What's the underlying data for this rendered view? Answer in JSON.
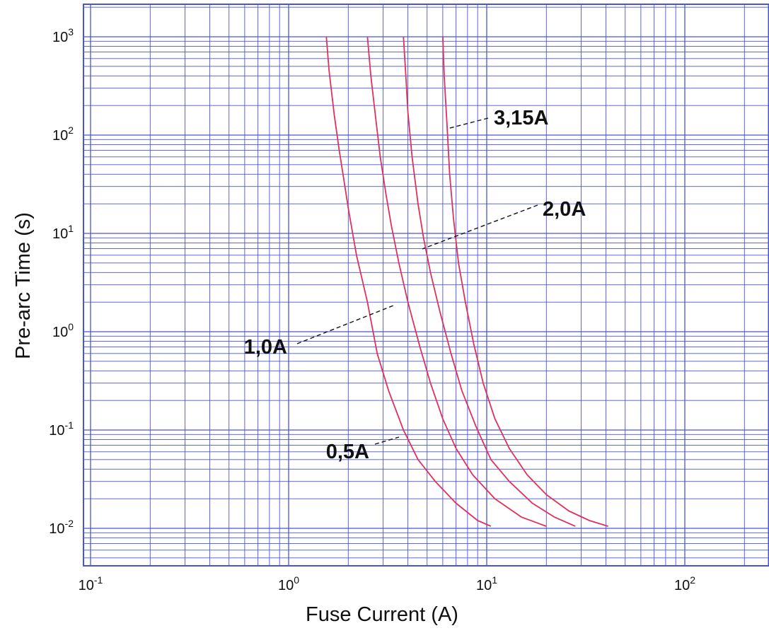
{
  "chart_data": {
    "type": "line",
    "xlabel": "Fuse Current (A)",
    "ylabel": "Pre-arc Time (s)",
    "x_scale": "log",
    "y_scale": "log",
    "xlim": [
      0.1,
      400
    ],
    "ylim": [
      0.0042,
      2000
    ],
    "grid": true,
    "legend": "none",
    "x_ticks": [
      {
        "value": 0.1,
        "base": "10",
        "exp": "-1"
      },
      {
        "value": 1,
        "base": "10",
        "exp": "0"
      },
      {
        "value": 10,
        "base": "10",
        "exp": "1"
      },
      {
        "value": 100,
        "base": "10",
        "exp": "2"
      }
    ],
    "y_ticks": [
      {
        "value": 1000,
        "base": "10",
        "exp": "3"
      },
      {
        "value": 100,
        "base": "10",
        "exp": "2"
      },
      {
        "value": 10,
        "base": "10",
        "exp": "1"
      },
      {
        "value": 1,
        "base": "10",
        "exp": "0"
      },
      {
        "value": 0.1,
        "base": "10",
        "exp": "-1"
      },
      {
        "value": 0.01,
        "base": "10",
        "exp": "-2"
      }
    ],
    "series": [
      {
        "name": "0,5A",
        "x": [
          1.55,
          1.6,
          1.7,
          1.8,
          1.9,
          2.0,
          2.2,
          2.5,
          2.8,
          3.2,
          3.8,
          4.5,
          5.5,
          7.0,
          9.0,
          10.5
        ],
        "y": [
          1000,
          450,
          160,
          70,
          35,
          18,
          6,
          2.0,
          0.6,
          0.25,
          0.1,
          0.05,
          0.03,
          0.018,
          0.012,
          0.0105
        ]
      },
      {
        "name": "1,0A",
        "x": [
          2.5,
          2.6,
          2.75,
          2.9,
          3.1,
          3.3,
          3.6,
          4.0,
          4.6,
          5.2,
          6.0,
          7.0,
          8.5,
          11.0,
          15.0,
          20.0
        ],
        "y": [
          1000,
          400,
          150,
          60,
          25,
          12,
          5,
          2.0,
          0.7,
          0.3,
          0.13,
          0.065,
          0.035,
          0.02,
          0.013,
          0.0105
        ]
      },
      {
        "name": "2,0A",
        "x": [
          3.8,
          3.9,
          4.0,
          4.2,
          4.5,
          4.8,
          5.2,
          5.8,
          6.6,
          7.5,
          8.8,
          10.5,
          13.0,
          17.0,
          22.0,
          28.0
        ],
        "y": [
          1000,
          420,
          170,
          60,
          20,
          9,
          4.0,
          1.6,
          0.6,
          0.25,
          0.11,
          0.05,
          0.03,
          0.018,
          0.013,
          0.0105
        ]
      },
      {
        "name": "3,15A",
        "x": [
          6.0,
          6.1,
          6.3,
          6.5,
          6.8,
          7.2,
          7.8,
          8.6,
          9.6,
          11.0,
          13.0,
          16.0,
          20.0,
          26.0,
          33.0,
          41.0
        ],
        "y": [
          1000,
          400,
          130,
          40,
          14,
          5,
          2.0,
          0.75,
          0.3,
          0.13,
          0.065,
          0.035,
          0.022,
          0.015,
          0.012,
          0.0105
        ]
      }
    ],
    "annotations": [
      {
        "text": "3,15A",
        "target_series": "3,15A"
      },
      {
        "text": "2,0A",
        "target_series": "2,0A"
      },
      {
        "text": "1,0A",
        "target_series": "1,0A"
      },
      {
        "text": "0,5A",
        "target_series": "0,5A"
      }
    ]
  },
  "colors": {
    "grid": "#4a55d6",
    "curve": "#e0315a",
    "leader": "#111111",
    "text": "#111111"
  }
}
